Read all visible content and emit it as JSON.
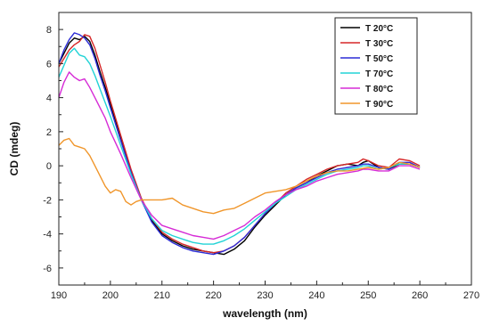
{
  "chart_data": {
    "type": "line",
    "title": "",
    "xlabel": "wavelength (nm)",
    "ylabel": "CD (mdeg)",
    "xlim": [
      190,
      270
    ],
    "ylim": [
      -7,
      9
    ],
    "xticks": [
      190,
      200,
      210,
      220,
      230,
      240,
      250,
      260,
      270
    ],
    "yticks": [
      -6,
      -4,
      -2,
      0,
      2,
      4,
      6,
      8
    ],
    "grid": false,
    "legend": "top-right",
    "series": [
      {
        "name": "T 20°C",
        "color": "#000000",
        "x": [
          190,
          191,
          192,
          193,
          194,
          195,
          196,
          197,
          198,
          199,
          200,
          202,
          204,
          206,
          208,
          210,
          212,
          214,
          216,
          218,
          220,
          222,
          224,
          226,
          228,
          230,
          232,
          234,
          236,
          238,
          240,
          242,
          244,
          246,
          248,
          249,
          250,
          252,
          254,
          256,
          258,
          260
        ],
        "y": [
          6.0,
          6.6,
          7.2,
          7.5,
          7.4,
          7.6,
          7.3,
          6.5,
          5.5,
          4.6,
          3.6,
          1.7,
          -0.3,
          -2.0,
          -3.2,
          -4.0,
          -4.4,
          -4.7,
          -4.9,
          -5.0,
          -5.1,
          -5.2,
          -4.9,
          -4.4,
          -3.6,
          -2.9,
          -2.3,
          -1.7,
          -1.3,
          -1.0,
          -0.6,
          -0.3,
          0.0,
          0.1,
          0.0,
          0.2,
          0.3,
          -0.1,
          -0.2,
          0.1,
          0.1,
          -0.1
        ]
      },
      {
        "name": "T 30°C",
        "color": "#d62728",
        "x": [
          190,
          191,
          192,
          193,
          194,
          195,
          196,
          197,
          198,
          199,
          200,
          202,
          204,
          206,
          208,
          210,
          212,
          214,
          216,
          218,
          220,
          222,
          224,
          226,
          228,
          230,
          232,
          234,
          236,
          238,
          240,
          242,
          244,
          246,
          248,
          249,
          250,
          252,
          254,
          256,
          258,
          260
        ],
        "y": [
          5.8,
          6.3,
          6.8,
          7.1,
          7.3,
          7.7,
          7.6,
          6.9,
          5.9,
          4.9,
          3.8,
          1.8,
          -0.2,
          -1.9,
          -3.1,
          -3.9,
          -4.3,
          -4.6,
          -4.8,
          -5.0,
          -5.1,
          -5.0,
          -4.7,
          -4.2,
          -3.5,
          -2.8,
          -2.2,
          -1.6,
          -1.2,
          -0.8,
          -0.5,
          -0.2,
          0.0,
          0.1,
          0.2,
          0.4,
          0.3,
          0.0,
          -0.1,
          0.4,
          0.3,
          0.0
        ]
      },
      {
        "name": "T 50°C",
        "color": "#2b2bd6",
        "x": [
          190,
          191,
          192,
          193,
          194,
          195,
          196,
          197,
          198,
          199,
          200,
          202,
          204,
          206,
          208,
          210,
          212,
          214,
          216,
          218,
          220,
          222,
          224,
          226,
          228,
          230,
          232,
          234,
          236,
          238,
          240,
          242,
          244,
          246,
          248,
          249,
          250,
          252,
          254,
          256,
          258,
          260
        ],
        "y": [
          6.0,
          6.8,
          7.4,
          7.8,
          7.7,
          7.5,
          7.1,
          6.3,
          5.3,
          4.4,
          3.4,
          1.5,
          -0.4,
          -2.0,
          -3.3,
          -4.1,
          -4.5,
          -4.8,
          -5.0,
          -5.1,
          -5.2,
          -5.0,
          -4.7,
          -4.2,
          -3.5,
          -2.8,
          -2.2,
          -1.7,
          -1.3,
          -1.0,
          -0.7,
          -0.4,
          -0.2,
          -0.1,
          0.0,
          0.1,
          0.1,
          -0.1,
          -0.2,
          0.2,
          0.2,
          -0.1
        ]
      },
      {
        "name": "T 70°C",
        "color": "#22d3d6",
        "x": [
          190,
          191,
          192,
          193,
          194,
          195,
          196,
          197,
          198,
          199,
          200,
          202,
          204,
          206,
          208,
          210,
          212,
          214,
          216,
          218,
          220,
          222,
          224,
          226,
          228,
          230,
          232,
          234,
          236,
          238,
          240,
          242,
          244,
          246,
          248,
          249,
          250,
          252,
          254,
          256,
          258,
          260
        ],
        "y": [
          5.2,
          5.9,
          6.6,
          6.9,
          6.5,
          6.4,
          6.0,
          5.3,
          4.5,
          3.7,
          2.9,
          1.2,
          -0.5,
          -2.0,
          -3.1,
          -3.8,
          -4.1,
          -4.3,
          -4.5,
          -4.6,
          -4.6,
          -4.4,
          -4.1,
          -3.7,
          -3.2,
          -2.7,
          -2.2,
          -1.8,
          -1.4,
          -1.1,
          -0.8,
          -0.5,
          -0.3,
          -0.2,
          -0.1,
          0.0,
          0.0,
          -0.2,
          -0.1,
          0.1,
          0.1,
          -0.1
        ]
      },
      {
        "name": "T 80°C",
        "color": "#d62bd6",
        "x": [
          190,
          191,
          192,
          193,
          194,
          195,
          196,
          197,
          198,
          199,
          200,
          202,
          204,
          206,
          208,
          210,
          212,
          214,
          216,
          218,
          220,
          222,
          224,
          226,
          228,
          230,
          232,
          234,
          236,
          238,
          240,
          242,
          244,
          246,
          248,
          249,
          250,
          252,
          254,
          256,
          258,
          260
        ],
        "y": [
          4.0,
          4.9,
          5.5,
          5.2,
          5.0,
          5.1,
          4.6,
          4.0,
          3.4,
          2.8,
          2.0,
          0.7,
          -0.7,
          -2.0,
          -2.9,
          -3.5,
          -3.7,
          -3.9,
          -4.1,
          -4.2,
          -4.3,
          -4.1,
          -3.8,
          -3.5,
          -3.0,
          -2.6,
          -2.1,
          -1.7,
          -1.4,
          -1.2,
          -0.9,
          -0.7,
          -0.5,
          -0.4,
          -0.3,
          -0.2,
          -0.2,
          -0.3,
          -0.3,
          0.0,
          0.0,
          -0.2
        ]
      },
      {
        "name": "T 90°C",
        "color": "#f0962b",
        "x": [
          190,
          191,
          192,
          193,
          194,
          195,
          196,
          197,
          198,
          199,
          200,
          201,
          202,
          203,
          204,
          205,
          206,
          208,
          210,
          212,
          214,
          216,
          218,
          220,
          222,
          224,
          226,
          228,
          230,
          232,
          234,
          236,
          238,
          240,
          242,
          244,
          246,
          248,
          250,
          252,
          254,
          256,
          258,
          260
        ],
        "y": [
          1.2,
          1.5,
          1.6,
          1.2,
          1.1,
          1.0,
          0.6,
          0.0,
          -0.6,
          -1.2,
          -1.6,
          -1.4,
          -1.5,
          -2.1,
          -2.3,
          -2.1,
          -2.0,
          -2.0,
          -2.0,
          -1.9,
          -2.3,
          -2.5,
          -2.7,
          -2.8,
          -2.6,
          -2.5,
          -2.2,
          -1.9,
          -1.6,
          -1.5,
          -1.4,
          -1.2,
          -0.9,
          -0.6,
          -0.4,
          -0.3,
          -0.3,
          -0.2,
          -0.1,
          -0.2,
          -0.1,
          0.2,
          0.1,
          -0.1
        ]
      }
    ]
  }
}
